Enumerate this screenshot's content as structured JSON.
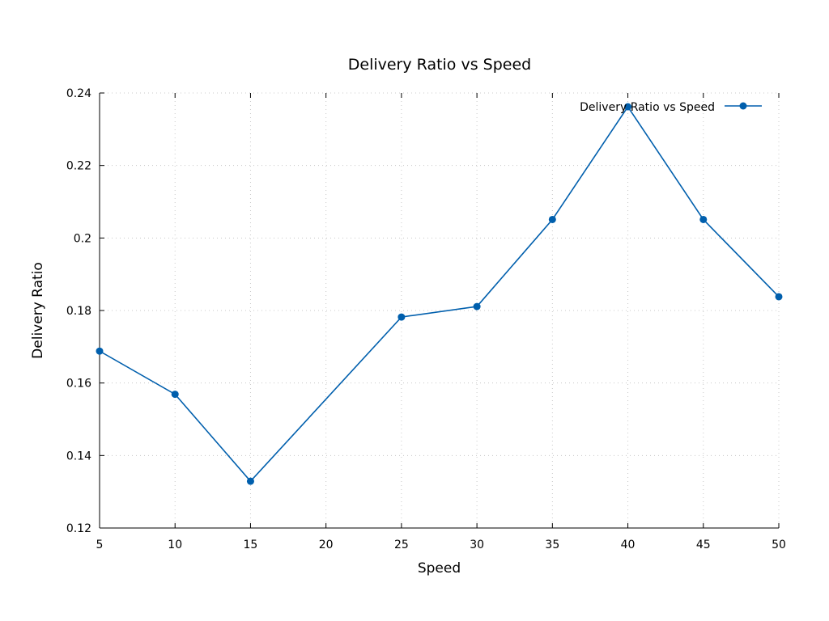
{
  "chart_data": {
    "type": "line",
    "title": "Delivery Ratio vs Speed",
    "xlabel": "Speed",
    "ylabel": "Delivery Ratio",
    "x": [
      5,
      10,
      15,
      25,
      30,
      35,
      40,
      45,
      50
    ],
    "series": [
      {
        "name": "Delivery Ratio vs Speed",
        "values": [
          0.1688,
          0.1569,
          0.1329,
          0.1782,
          0.1811,
          0.2051,
          0.2362,
          0.2051,
          0.1838
        ],
        "color": "#005fad",
        "marker": "circle"
      }
    ],
    "xlim": [
      5,
      50
    ],
    "ylim": [
      0.12,
      0.24
    ],
    "xticks": [
      5,
      10,
      15,
      20,
      25,
      30,
      35,
      40,
      45,
      50
    ],
    "xtick_labels": [
      "5",
      "10",
      "15",
      "20",
      "25",
      "30",
      "35",
      "40",
      "45",
      "50"
    ],
    "yticks": [
      0.12,
      0.14,
      0.16,
      0.18,
      0.2,
      0.22,
      0.24
    ],
    "ytick_labels": [
      "0.12",
      "0.14",
      "0.16",
      "0.18",
      "0.2",
      "0.22",
      "0.24"
    ],
    "grid": true,
    "legend_position": "top-right"
  }
}
